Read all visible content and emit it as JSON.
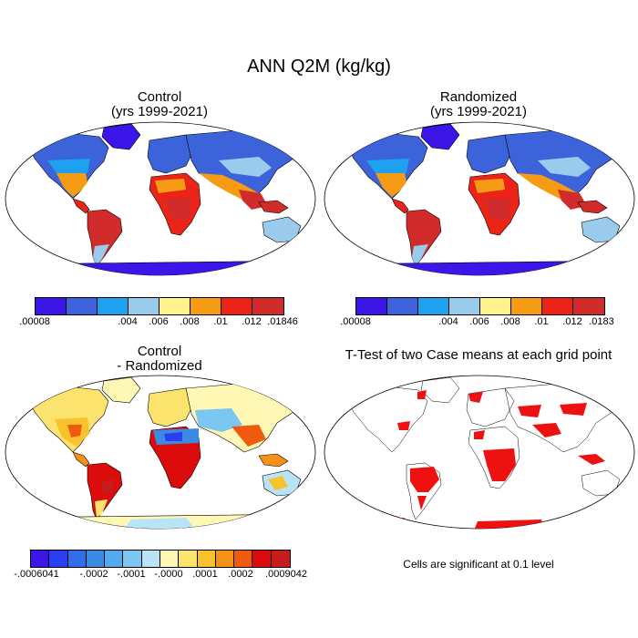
{
  "figure": {
    "title": "ANN Q2M (kg/kg)",
    "note": "Cells are significant at 0.1 level"
  },
  "panels": {
    "control": {
      "title_line1": "Control",
      "title_line2": "(yrs 1999-2021)"
    },
    "randomized": {
      "title_line1": "Randomized",
      "title_line2": "(yrs 1999-2021)"
    },
    "difference": {
      "title_line1": "Control",
      "title_line2": "- Randomized"
    },
    "ttest": {
      "title": "T-Test of two Case means at each grid point"
    }
  },
  "colorbars": {
    "control": {
      "colors": [
        "#3c16e8",
        "#3c63d9",
        "#1ea1ee",
        "#9bcbec",
        "#fdf48c",
        "#f59c14",
        "#ec2417",
        "#d12b2b"
      ],
      "labels": [
        ".00008",
        ".004",
        ".006",
        ".008",
        ".01",
        ".012",
        ".01846"
      ]
    },
    "randomized": {
      "colors": [
        "#3c16e8",
        "#3c63d9",
        "#1ea1ee",
        "#9bcbec",
        "#fdf48c",
        "#f59c14",
        "#ec2417",
        "#d12b2b"
      ],
      "labels": [
        ".00008",
        ".004",
        ".006",
        ".008",
        ".01",
        ".012",
        ".0183"
      ]
    },
    "difference": {
      "colors": [
        "#3c16e8",
        "#2a3ff0",
        "#2f6ee8",
        "#3c8be3",
        "#55a9ee",
        "#7cc6f2",
        "#b9e3f7",
        "#fff8b4",
        "#fbe36d",
        "#f8c22e",
        "#f49116",
        "#f05a0f",
        "#dc0c0c",
        "#c61c1c"
      ],
      "labels": [
        "-.0006041",
        "-.0002",
        "-.0001",
        "-.0000",
        ".0001",
        ".0002",
        ".0009042"
      ]
    }
  },
  "map_colors": {
    "ocean": "#ffffff",
    "coast": "#000000",
    "antarctica": "#3c16e8",
    "significant": "#ee1111"
  }
}
